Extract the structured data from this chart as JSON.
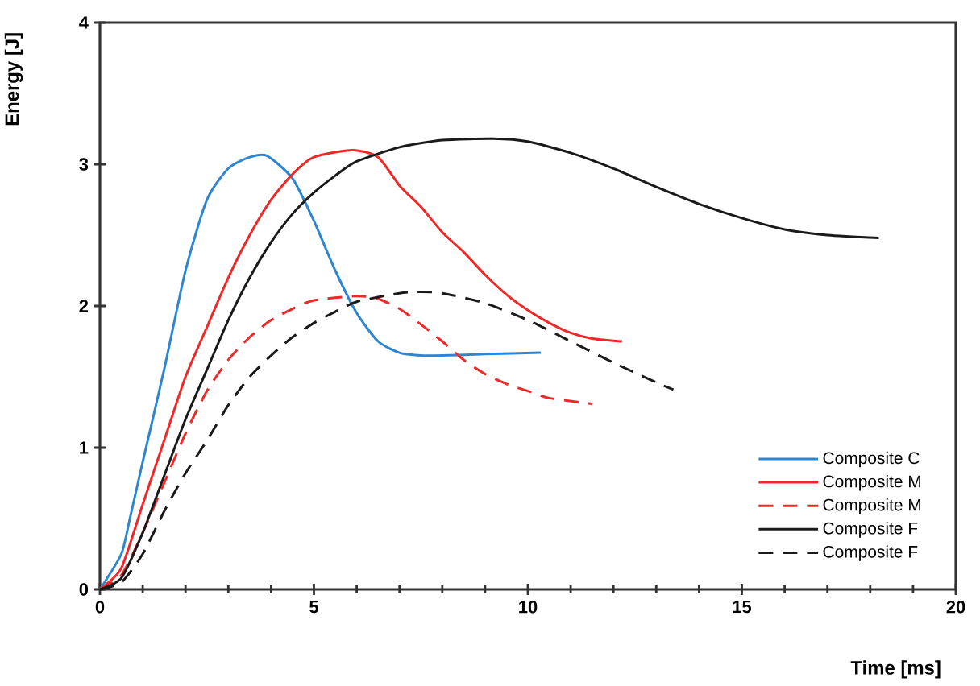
{
  "chart_data": {
    "type": "line",
    "xlabel": "Time [ms]",
    "ylabel": "Energy [J]",
    "xlim": [
      0,
      20
    ],
    "ylim": [
      0,
      4
    ],
    "xticks": [
      0,
      5,
      10,
      15,
      20
    ],
    "yticks": [
      0,
      1,
      2,
      3,
      4
    ],
    "grid": false,
    "legend": "bottom right",
    "marker": "none",
    "series": [
      {
        "name": "Composite C",
        "color": "#2e86d1",
        "line_style": "solid",
        "x": [
          0,
          0.5,
          0.7,
          1,
          1.5,
          2,
          2.5,
          3,
          3.5,
          3.9,
          4.5,
          5,
          5.5,
          6,
          6.5,
          7,
          7.5,
          8,
          9,
          10.3
        ],
        "values": [
          0,
          0.25,
          0.5,
          0.9,
          1.55,
          2.25,
          2.75,
          2.97,
          3.05,
          3.06,
          2.9,
          2.6,
          2.25,
          1.95,
          1.75,
          1.67,
          1.65,
          1.65,
          1.66,
          1.67
        ]
      },
      {
        "name": "Composite M",
        "color": "#f02828",
        "line_style": "solid",
        "x": [
          0,
          0.5,
          1,
          1.5,
          2,
          2.5,
          3,
          3.5,
          4,
          4.5,
          5,
          5.9,
          6.5,
          7,
          7.5,
          8,
          8.5,
          9,
          9.5,
          10,
          10.5,
          11,
          11.5,
          12.2
        ],
        "values": [
          0,
          0.15,
          0.6,
          1.05,
          1.5,
          1.85,
          2.2,
          2.5,
          2.75,
          2.93,
          3.05,
          3.1,
          3.05,
          2.85,
          2.7,
          2.52,
          2.38,
          2.22,
          2.08,
          1.97,
          1.88,
          1.81,
          1.77,
          1.75
        ]
      },
      {
        "name": "Composite M",
        "color": "#f02828",
        "line_style": "dashed",
        "x": [
          0,
          0.5,
          1,
          1.5,
          2,
          2.5,
          3,
          3.5,
          4,
          4.5,
          5,
          6,
          6.5,
          7,
          7.5,
          8,
          8.5,
          9,
          9.5,
          10,
          10.5,
          11.5
        ],
        "values": [
          0,
          0.1,
          0.4,
          0.75,
          1.1,
          1.4,
          1.62,
          1.78,
          1.9,
          1.98,
          2.04,
          2.07,
          2.05,
          1.98,
          1.87,
          1.75,
          1.62,
          1.52,
          1.45,
          1.4,
          1.35,
          1.31
        ]
      },
      {
        "name": "Composite F",
        "color": "#1a1a1a",
        "line_style": "solid",
        "x": [
          0,
          0.5,
          1,
          1.5,
          2,
          2.5,
          3,
          3.5,
          4,
          4.5,
          5,
          5.5,
          6,
          7,
          8,
          9.2,
          10,
          11,
          12,
          13,
          14,
          15,
          16,
          17,
          18.2
        ],
        "values": [
          0,
          0.08,
          0.4,
          0.8,
          1.2,
          1.55,
          1.9,
          2.2,
          2.45,
          2.65,
          2.8,
          2.92,
          3.02,
          3.12,
          3.17,
          3.18,
          3.16,
          3.08,
          2.97,
          2.84,
          2.72,
          2.62,
          2.54,
          2.5,
          2.48
        ]
      },
      {
        "name": "Composite F",
        "color": "#1a1a1a",
        "line_style": "dashed",
        "x": [
          0,
          0.5,
          1,
          1.5,
          2,
          2.5,
          3,
          3.5,
          4,
          4.5,
          5,
          5.5,
          6,
          7,
          7.5,
          8,
          9,
          10,
          11,
          12,
          13,
          13.4
        ],
        "values": [
          0,
          0.05,
          0.25,
          0.55,
          0.82,
          1.05,
          1.3,
          1.5,
          1.65,
          1.78,
          1.88,
          1.96,
          2.03,
          2.09,
          2.1,
          2.09,
          2.02,
          1.9,
          1.75,
          1.6,
          1.46,
          1.41
        ]
      }
    ]
  }
}
